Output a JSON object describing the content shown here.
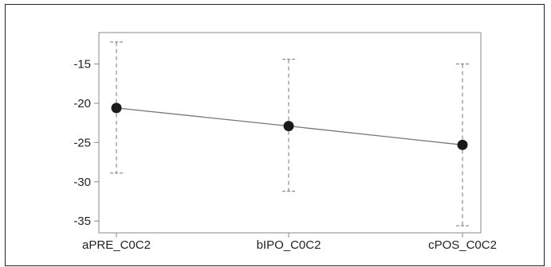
{
  "chart_data": {
    "type": "line",
    "categories": [
      "aPRE_C0C2",
      "bIPO_C0C2",
      "cPOS_C0C2"
    ],
    "series": [
      {
        "values": [
          -20.6,
          -22.9,
          -25.3
        ],
        "error_low": [
          -28.9,
          -31.2,
          -35.6
        ],
        "error_high": [
          -12.2,
          -14.4,
          -15.0
        ]
      }
    ],
    "yticks": [
      -15,
      -20,
      -25,
      -30,
      -35
    ],
    "ylim": [
      -36.5,
      -11.0
    ],
    "title": "",
    "xlabel": "",
    "ylabel": "",
    "grid": false,
    "colors": {
      "line": "#777777",
      "marker": "#1a1a1a",
      "errorbar": "#777777",
      "axis": "#888888"
    }
  }
}
